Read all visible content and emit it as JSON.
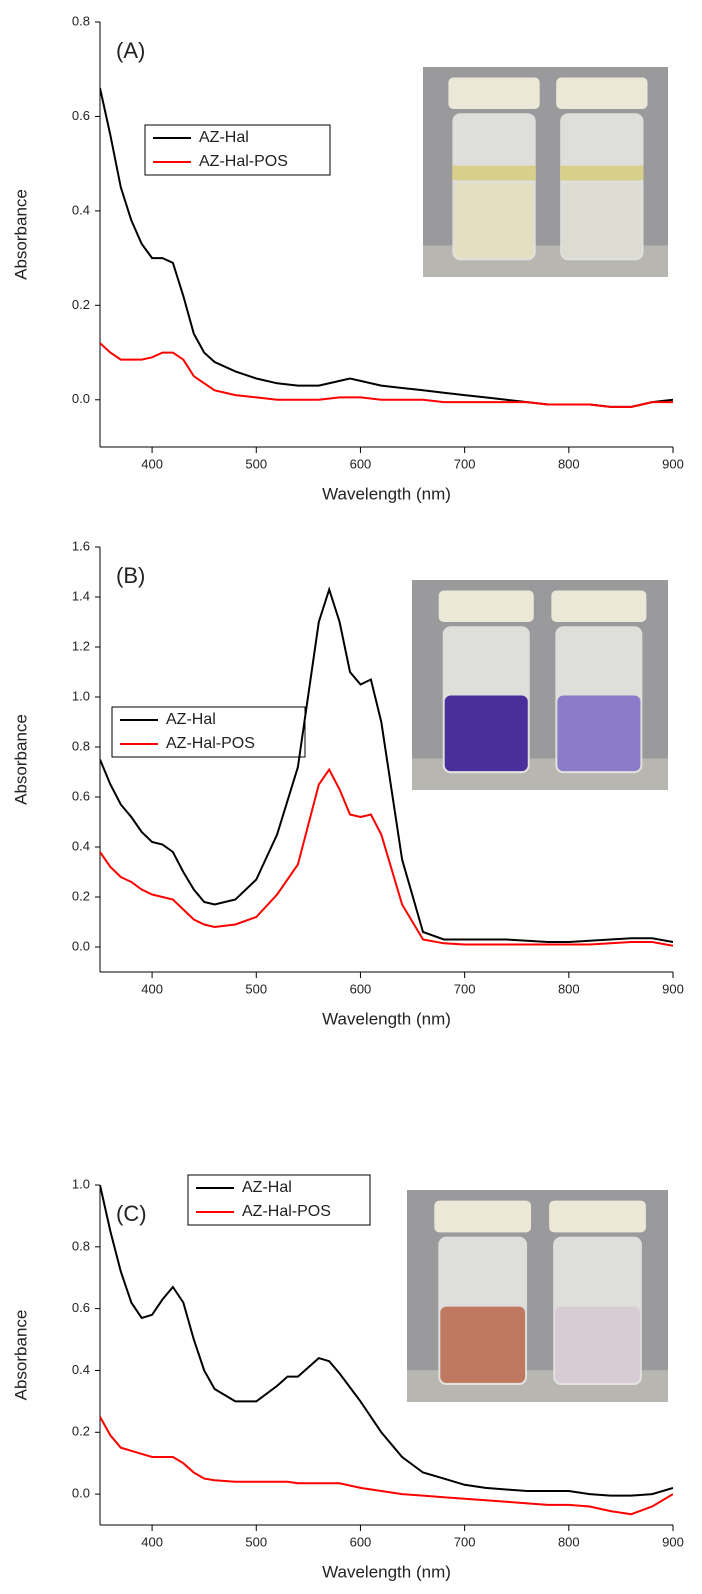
{
  "chart_data": [
    {
      "type": "line",
      "annotation": "(A)",
      "xlabel": "Wavelength (nm)",
      "ylabel": "Absorbance",
      "x": [
        350,
        360,
        370,
        380,
        390,
        400,
        410,
        420,
        430,
        440,
        450,
        460,
        480,
        500,
        520,
        540,
        560,
        580,
        590,
        600,
        620,
        640,
        660,
        680,
        700,
        720,
        740,
        760,
        780,
        800,
        820,
        840,
        860,
        880,
        900
      ],
      "series": [
        {
          "name": "AZ-Hal",
          "color": "#000000",
          "values": [
            0.66,
            0.56,
            0.45,
            0.38,
            0.33,
            0.3,
            0.3,
            0.29,
            0.22,
            0.14,
            0.1,
            0.08,
            0.06,
            0.045,
            0.035,
            0.03,
            0.03,
            0.04,
            0.045,
            0.04,
            0.03,
            0.025,
            0.02,
            0.015,
            0.01,
            0.005,
            0.0,
            -0.005,
            -0.01,
            -0.01,
            -0.01,
            -0.015,
            -0.015,
            -0.005,
            0.0
          ]
        },
        {
          "name": "AZ-Hal-POS",
          "color": "#ff0000",
          "values": [
            0.12,
            0.1,
            0.085,
            0.085,
            0.085,
            0.09,
            0.1,
            0.1,
            0.085,
            0.05,
            0.035,
            0.02,
            0.01,
            0.005,
            0.0,
            0.0,
            0.0,
            0.005,
            0.005,
            0.005,
            0.0,
            0.0,
            0.0,
            -0.005,
            -0.005,
            -0.005,
            -0.005,
            -0.005,
            -0.01,
            -0.01,
            -0.01,
            -0.015,
            -0.015,
            -0.005,
            -0.005
          ]
        }
      ],
      "xlim": [
        350,
        900
      ],
      "xticks": [
        400,
        500,
        600,
        700,
        800,
        900
      ],
      "ylim": [
        -0.1,
        0.8
      ],
      "yticks": [
        {
          "value": 0,
          "label": "0.0"
        },
        {
          "value": 0.2,
          "label": "0.2"
        },
        {
          "value": 0.4,
          "label": "0.4"
        },
        {
          "value": 0.6,
          "label": "0.6"
        },
        {
          "value": 0.8,
          "label": "0.8"
        }
      ]
    },
    {
      "type": "line",
      "annotation": "(B)",
      "xlabel": "Wavelength (nm)",
      "ylabel": "Absorbance",
      "x": [
        350,
        360,
        370,
        380,
        390,
        400,
        410,
        420,
        430,
        440,
        450,
        460,
        480,
        500,
        520,
        540,
        560,
        570,
        580,
        590,
        600,
        610,
        620,
        640,
        660,
        680,
        700,
        720,
        740,
        760,
        780,
        800,
        820,
        840,
        860,
        880,
        900
      ],
      "series": [
        {
          "name": "AZ-Hal",
          "color": "#000000",
          "values": [
            0.75,
            0.65,
            0.57,
            0.52,
            0.46,
            0.42,
            0.41,
            0.38,
            0.3,
            0.23,
            0.18,
            0.17,
            0.19,
            0.27,
            0.45,
            0.72,
            1.3,
            1.43,
            1.3,
            1.1,
            1.05,
            1.07,
            0.9,
            0.35,
            0.06,
            0.03,
            0.03,
            0.03,
            0.03,
            0.025,
            0.02,
            0.02,
            0.025,
            0.03,
            0.035,
            0.035,
            0.02
          ]
        },
        {
          "name": "AZ-Hal-POS",
          "color": "#ff0000",
          "values": [
            0.38,
            0.32,
            0.28,
            0.26,
            0.23,
            0.21,
            0.2,
            0.19,
            0.15,
            0.11,
            0.09,
            0.08,
            0.09,
            0.12,
            0.21,
            0.33,
            0.65,
            0.71,
            0.63,
            0.53,
            0.52,
            0.53,
            0.45,
            0.17,
            0.03,
            0.015,
            0.01,
            0.01,
            0.01,
            0.01,
            0.01,
            0.01,
            0.01,
            0.015,
            0.02,
            0.02,
            0.005
          ]
        }
      ],
      "xlim": [
        350,
        900
      ],
      "xticks": [
        400,
        500,
        600,
        700,
        800,
        900
      ],
      "ylim": [
        -0.1,
        1.6
      ],
      "yticks": [
        {
          "value": 0,
          "label": "0.0"
        },
        {
          "value": 0.2,
          "label": "0.2"
        },
        {
          "value": 0.4,
          "label": "0.4"
        },
        {
          "value": 0.6,
          "label": "0.6"
        },
        {
          "value": 0.8,
          "label": "0.8"
        },
        {
          "value": 1,
          "label": "1.0"
        },
        {
          "value": 1.2,
          "label": "1.2"
        },
        {
          "value": 1.4,
          "label": "1.4"
        },
        {
          "value": 1.6,
          "label": "1.6"
        }
      ]
    },
    {
      "type": "line",
      "annotation": "(C)",
      "xlabel": "Wavelength (nm)",
      "ylabel": "Absorbance",
      "x": [
        350,
        360,
        370,
        380,
        390,
        400,
        410,
        420,
        430,
        440,
        450,
        460,
        480,
        500,
        520,
        530,
        540,
        560,
        570,
        580,
        600,
        620,
        640,
        660,
        680,
        700,
        720,
        740,
        760,
        780,
        800,
        820,
        840,
        860,
        880,
        900
      ],
      "series": [
        {
          "name": "AZ-Hal",
          "color": "#000000",
          "values": [
            1.0,
            0.85,
            0.72,
            0.62,
            0.57,
            0.58,
            0.63,
            0.67,
            0.62,
            0.5,
            0.4,
            0.34,
            0.3,
            0.3,
            0.35,
            0.38,
            0.38,
            0.44,
            0.43,
            0.39,
            0.3,
            0.2,
            0.12,
            0.07,
            0.05,
            0.03,
            0.02,
            0.015,
            0.01,
            0.01,
            0.01,
            0.0,
            -0.005,
            -0.005,
            0.0,
            0.02
          ]
        },
        {
          "name": "AZ-Hal-POS",
          "color": "#ff0000",
          "values": [
            0.25,
            0.19,
            0.15,
            0.14,
            0.13,
            0.12,
            0.12,
            0.12,
            0.1,
            0.07,
            0.05,
            0.045,
            0.04,
            0.04,
            0.04,
            0.04,
            0.035,
            0.035,
            0.035,
            0.035,
            0.02,
            0.01,
            0.0,
            -0.005,
            -0.01,
            -0.015,
            -0.02,
            -0.025,
            -0.03,
            -0.035,
            -0.035,
            -0.04,
            -0.055,
            -0.065,
            -0.04,
            0.0
          ]
        }
      ],
      "xlim": [
        350,
        900
      ],
      "xticks": [
        400,
        500,
        600,
        700,
        800,
        900
      ],
      "ylim": [
        -0.1,
        1.0
      ],
      "yticks": [
        {
          "value": 0,
          "label": "0.0"
        },
        {
          "value": 0.2,
          "label": "0.2"
        },
        {
          "value": 0.4,
          "label": "0.4"
        },
        {
          "value": 0.6,
          "label": "0.6"
        },
        {
          "value": 0.8,
          "label": "0.8"
        },
        {
          "value": 1,
          "label": "1.0"
        }
      ]
    }
  ]
}
